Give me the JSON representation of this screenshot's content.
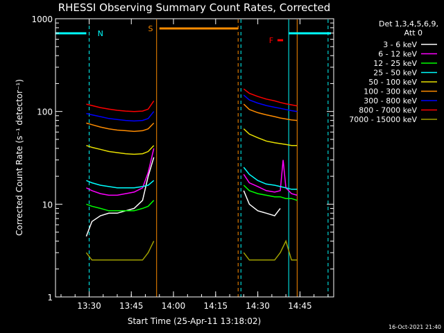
{
  "chart_data": {
    "type": "line",
    "title": "RHESSI Observing Summary Count Rates, Corrected",
    "xlabel": "Start Time (25-Apr-11 13:18:02)",
    "ylabel": "Corrected Count Rate (s⁻¹ detector⁻¹)",
    "yscale": "log",
    "ylim": [
      1,
      1000
    ],
    "xlim": [
      "13:18:02",
      "14:57:00"
    ],
    "x_ticks": [
      "13:30",
      "13:45",
      "14:00",
      "14:15",
      "14:30",
      "14:45"
    ],
    "y_ticks": [
      "1",
      "10",
      "100",
      "1000"
    ],
    "grid": false,
    "legend_header": [
      "Det 1,3,4,5,6,9,",
      "Att 0"
    ],
    "legend_position": "top-right",
    "annotations": [
      {
        "label": "N",
        "color": "#00ffff"
      },
      {
        "label": "S",
        "color": "#ff8c00"
      },
      {
        "label": "F",
        "color": "#ff0000"
      }
    ],
    "footer_date": "16-Oct-2021 21:40",
    "series": [
      {
        "name": "3 - 6 keV",
        "color": "#ffffff",
        "segments": [
          {
            "x": [
              "13:29",
              "13:31",
              "13:34",
              "13:37",
              "13:40",
              "13:43",
              "13:46",
              "13:49",
              "13:51",
              "13:53"
            ],
            "y": [
              4.5,
              6.5,
              7.5,
              8,
              8,
              8.5,
              9,
              11,
              20,
              32
            ]
          },
          {
            "x": [
              "14:25",
              "14:27",
              "14:30",
              "14:33",
              "14:36",
              "14:38"
            ],
            "y": [
              14,
              10,
              8.5,
              8,
              7.5,
              9
            ]
          }
        ]
      },
      {
        "name": "6 - 12 keV",
        "color": "#ff00ff",
        "segments": [
          {
            "x": [
              "13:29",
              "13:31",
              "13:34",
              "13:37",
              "13:40",
              "13:43",
              "13:46",
              "13:49",
              "13:51",
              "13:53"
            ],
            "y": [
              15,
              14,
              13,
              12.5,
              12.5,
              13,
              13.5,
              15,
              22,
              40
            ]
          },
          {
            "x": [
              "14:25",
              "14:27",
              "14:30",
              "14:33",
              "14:36",
              "14:38",
              "14:39",
              "14:40",
              "14:42",
              "14:44"
            ],
            "y": [
              21,
              17,
              15.5,
              14,
              13.5,
              14,
              30,
              15,
              13,
              12.5
            ]
          }
        ]
      },
      {
        "name": "12 - 25 keV",
        "color": "#00ff00",
        "segments": [
          {
            "x": [
              "13:29",
              "13:31",
              "13:34",
              "13:37",
              "13:40",
              "13:43",
              "13:46",
              "13:49",
              "13:51",
              "13:53"
            ],
            "y": [
              10,
              9.5,
              9,
              8.5,
              8.5,
              8.5,
              8.5,
              9,
              9.5,
              11
            ]
          },
          {
            "x": [
              "14:25",
              "14:27",
              "14:30",
              "14:33",
              "14:36",
              "14:38",
              "14:40",
              "14:42",
              "14:44"
            ],
            "y": [
              16,
              14,
              13,
              12.5,
              12,
              12,
              11.5,
              11.5,
              11
            ]
          }
        ]
      },
      {
        "name": "25 - 50 keV",
        "color": "#00ffff",
        "segments": [
          {
            "x": [
              "13:29",
              "13:31",
              "13:34",
              "13:37",
              "13:40",
              "13:43",
              "13:46",
              "13:49",
              "13:51",
              "13:53"
            ],
            "y": [
              18,
              17,
              16,
              15.5,
              15,
              15,
              15,
              15.5,
              16,
              18
            ]
          },
          {
            "x": [
              "14:25",
              "14:27",
              "14:30",
              "14:33",
              "14:36",
              "14:38",
              "14:40",
              "14:42",
              "14:44"
            ],
            "y": [
              25,
              21,
              18,
              16.5,
              16,
              15.5,
              15,
              14.5,
              14.5
            ]
          }
        ]
      },
      {
        "name": "50 - 100 keV",
        "color": "#e8e000",
        "segments": [
          {
            "x": [
              "13:29",
              "13:31",
              "13:34",
              "13:37",
              "13:40",
              "13:43",
              "13:46",
              "13:49",
              "13:51",
              "13:53"
            ],
            "y": [
              43,
              41,
              39,
              37,
              36,
              35,
              34.5,
              35,
              37,
              43
            ]
          },
          {
            "x": [
              "14:25",
              "14:27",
              "14:30",
              "14:33",
              "14:36",
              "14:38",
              "14:40",
              "14:42",
              "14:44"
            ],
            "y": [
              65,
              57,
              52,
              48,
              46,
              45,
              44,
              43,
              43
            ]
          }
        ]
      },
      {
        "name": "100 - 300 keV",
        "color": "#ff8c00",
        "segments": [
          {
            "x": [
              "13:29",
              "13:31",
              "13:34",
              "13:37",
              "13:40",
              "13:43",
              "13:46",
              "13:49",
              "13:51",
              "13:53"
            ],
            "y": [
              75,
              72,
              68,
              65,
              63,
              62,
              61,
              62,
              65,
              75
            ]
          },
          {
            "x": [
              "14:25",
              "14:27",
              "14:30",
              "14:33",
              "14:36",
              "14:38",
              "14:40",
              "14:42",
              "14:44"
            ],
            "y": [
              120,
              105,
              97,
              92,
              88,
              85,
              83,
              81,
              80
            ]
          }
        ]
      },
      {
        "name": "300 - 800 keV",
        "color": "#0000ff",
        "segments": [
          {
            "x": [
              "13:29",
              "13:31",
              "13:34",
              "13:37",
              "13:40",
              "13:43",
              "13:46",
              "13:49",
              "13:51",
              "13:53"
            ],
            "y": [
              95,
              92,
              88,
              84,
              82,
              80,
              79,
              80,
              84,
              100
            ]
          },
          {
            "x": [
              "14:25",
              "14:27",
              "14:30",
              "14:33",
              "14:36",
              "14:38",
              "14:40",
              "14:42",
              "14:44"
            ],
            "y": [
              150,
              133,
              123,
              116,
              111,
              108,
              105,
              102,
              100
            ]
          }
        ]
      },
      {
        "name": "800 - 7000 keV",
        "color": "#ff0000",
        "segments": [
          {
            "x": [
              "13:29",
              "13:31",
              "13:34",
              "13:37",
              "13:40",
              "13:43",
              "13:46",
              "13:49",
              "13:51",
              "13:53"
            ],
            "y": [
              120,
              116,
              110,
              106,
              103,
              101,
              100,
              101,
              106,
              130
            ]
          },
          {
            "x": [
              "14:25",
              "14:27",
              "14:30",
              "14:33",
              "14:36",
              "14:38",
              "14:40",
              "14:42",
              "14:44"
            ],
            "y": [
              175,
              157,
              145,
              136,
              130,
              125,
              121,
              118,
              115
            ]
          }
        ]
      },
      {
        "name": "7000 - 15000 keV",
        "color": "#a0a000",
        "segments": [
          {
            "x": [
              "13:29",
              "13:31",
              "13:34",
              "13:37",
              "13:40",
              "13:43",
              "13:46",
              "13:49",
              "13:51",
              "13:53"
            ],
            "y": [
              3,
              2.5,
              2.5,
              2.5,
              2.5,
              2.5,
              2.5,
              2.5,
              3,
              4
            ]
          },
          {
            "x": [
              "14:25",
              "14:27",
              "14:30",
              "14:33",
              "14:36",
              "14:38",
              "14:40",
              "14:42",
              "14:44"
            ],
            "y": [
              3,
              2.5,
              2.5,
              2.5,
              2.5,
              3,
              4,
              2.5,
              2.5
            ]
          }
        ]
      }
    ]
  }
}
